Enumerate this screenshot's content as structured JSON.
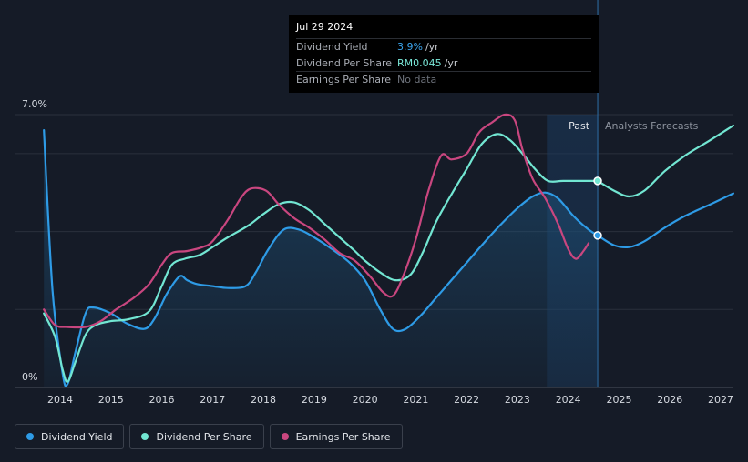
{
  "tooltip": {
    "date": "Jul 29 2024",
    "rows": [
      {
        "label": "Dividend Yield",
        "value": "3.9%",
        "unit": "/yr"
      },
      {
        "label": "Dividend Per Share",
        "value": "RM0.045",
        "unit": "/yr"
      },
      {
        "label": "Earnings Per Share",
        "value": "No data",
        "unit": ""
      }
    ]
  },
  "legend": [
    {
      "label": "Dividend Yield",
      "color": "#2e9be6"
    },
    {
      "label": "Dividend Per Share",
      "color": "#72e6d2"
    },
    {
      "label": "Earnings Per Share",
      "color": "#c9467f"
    }
  ],
  "chart_data": {
    "type": "line",
    "x_ticks": [
      "2014",
      "2015",
      "2016",
      "2017",
      "2018",
      "2019",
      "2020",
      "2021",
      "2022",
      "2023",
      "2024",
      "2025",
      "2026",
      "2027"
    ],
    "y_ticks": [
      "0%",
      "7.0%"
    ],
    "ylim": [
      0,
      7.0
    ],
    "xlim": [
      2013.0,
      2027.25
    ],
    "regions": {
      "past_label": "Past",
      "forecast_label": "Analysts Forecasts",
      "past_start": 2023.58,
      "split": 2024.58
    },
    "marker_x": 2024.58,
    "series": [
      {
        "key": "dividend_yield",
        "color": "#2e9be6",
        "fill": true,
        "points": [
          [
            2013.68,
            6.6
          ],
          [
            2013.85,
            2.5
          ],
          [
            2014.05,
            0.35
          ],
          [
            2014.15,
            0.1
          ],
          [
            2014.3,
            0.9
          ],
          [
            2014.5,
            1.9
          ],
          [
            2014.65,
            2.05
          ],
          [
            2015.0,
            1.9
          ],
          [
            2015.3,
            1.65
          ],
          [
            2015.65,
            1.5
          ],
          [
            2015.85,
            1.75
          ],
          [
            2016.1,
            2.4
          ],
          [
            2016.35,
            2.85
          ],
          [
            2016.5,
            2.75
          ],
          [
            2016.7,
            2.65
          ],
          [
            2017.0,
            2.6
          ],
          [
            2017.3,
            2.55
          ],
          [
            2017.65,
            2.6
          ],
          [
            2017.85,
            2.95
          ],
          [
            2018.1,
            3.55
          ],
          [
            2018.4,
            4.05
          ],
          [
            2018.7,
            4.05
          ],
          [
            2019.0,
            3.85
          ],
          [
            2019.35,
            3.55
          ],
          [
            2019.7,
            3.2
          ],
          [
            2020.0,
            2.75
          ],
          [
            2020.3,
            2.0
          ],
          [
            2020.55,
            1.5
          ],
          [
            2020.8,
            1.5
          ],
          [
            2021.1,
            1.85
          ],
          [
            2021.4,
            2.3
          ],
          [
            2021.7,
            2.75
          ],
          [
            2022.0,
            3.2
          ],
          [
            2022.3,
            3.65
          ],
          [
            2022.65,
            4.15
          ],
          [
            2023.0,
            4.6
          ],
          [
            2023.3,
            4.9
          ],
          [
            2023.55,
            5.0
          ],
          [
            2023.8,
            4.85
          ],
          [
            2024.1,
            4.4
          ],
          [
            2024.4,
            4.05
          ],
          [
            2024.58,
            3.9
          ]
        ],
        "forecast": [
          [
            2024.58,
            3.9
          ],
          [
            2024.9,
            3.65
          ],
          [
            2025.2,
            3.6
          ],
          [
            2025.5,
            3.75
          ],
          [
            2025.9,
            4.1
          ],
          [
            2026.3,
            4.4
          ],
          [
            2026.8,
            4.7
          ],
          [
            2027.25,
            4.98
          ]
        ]
      },
      {
        "key": "dividend_per_share",
        "color": "#72e6d2",
        "fill": false,
        "points": [
          [
            2013.68,
            1.9
          ],
          [
            2013.9,
            1.3
          ],
          [
            2014.05,
            0.45
          ],
          [
            2014.15,
            0.15
          ],
          [
            2014.3,
            0.65
          ],
          [
            2014.5,
            1.35
          ],
          [
            2014.7,
            1.6
          ],
          [
            2015.0,
            1.7
          ],
          [
            2015.35,
            1.75
          ],
          [
            2015.75,
            1.95
          ],
          [
            2016.0,
            2.6
          ],
          [
            2016.2,
            3.15
          ],
          [
            2016.45,
            3.3
          ],
          [
            2016.75,
            3.4
          ],
          [
            2017.0,
            3.6
          ],
          [
            2017.3,
            3.85
          ],
          [
            2017.7,
            4.15
          ],
          [
            2018.0,
            4.45
          ],
          [
            2018.3,
            4.7
          ],
          [
            2018.6,
            4.75
          ],
          [
            2018.9,
            4.55
          ],
          [
            2019.2,
            4.2
          ],
          [
            2019.5,
            3.85
          ],
          [
            2019.8,
            3.5
          ],
          [
            2020.0,
            3.25
          ],
          [
            2020.3,
            2.95
          ],
          [
            2020.6,
            2.75
          ],
          [
            2020.9,
            2.9
          ],
          [
            2021.15,
            3.5
          ],
          [
            2021.4,
            4.25
          ],
          [
            2021.7,
            4.95
          ],
          [
            2022.0,
            5.6
          ],
          [
            2022.3,
            6.25
          ],
          [
            2022.6,
            6.5
          ],
          [
            2022.85,
            6.35
          ],
          [
            2023.1,
            6.0
          ],
          [
            2023.35,
            5.6
          ],
          [
            2023.6,
            5.3
          ],
          [
            2023.9,
            5.3
          ],
          [
            2024.3,
            5.3
          ],
          [
            2024.58,
            5.3
          ]
        ],
        "forecast": [
          [
            2024.58,
            5.3
          ],
          [
            2024.9,
            5.05
          ],
          [
            2025.2,
            4.9
          ],
          [
            2025.5,
            5.05
          ],
          [
            2025.9,
            5.55
          ],
          [
            2026.3,
            5.95
          ],
          [
            2026.8,
            6.35
          ],
          [
            2027.25,
            6.72
          ]
        ]
      },
      {
        "key": "earnings_per_share",
        "color": "#c9467f",
        "fill": false,
        "points": [
          [
            2013.68,
            2.0
          ],
          [
            2013.9,
            1.6
          ],
          [
            2014.15,
            1.55
          ],
          [
            2014.5,
            1.55
          ],
          [
            2014.8,
            1.7
          ],
          [
            2015.1,
            2.0
          ],
          [
            2015.45,
            2.3
          ],
          [
            2015.75,
            2.65
          ],
          [
            2016.0,
            3.15
          ],
          [
            2016.2,
            3.45
          ],
          [
            2016.5,
            3.5
          ],
          [
            2016.8,
            3.6
          ],
          [
            2017.0,
            3.75
          ],
          [
            2017.3,
            4.3
          ],
          [
            2017.55,
            4.85
          ],
          [
            2017.75,
            5.1
          ],
          [
            2018.05,
            5.05
          ],
          [
            2018.3,
            4.7
          ],
          [
            2018.6,
            4.35
          ],
          [
            2018.9,
            4.1
          ],
          [
            2019.2,
            3.8
          ],
          [
            2019.5,
            3.45
          ],
          [
            2019.8,
            3.25
          ],
          [
            2020.1,
            2.85
          ],
          [
            2020.35,
            2.45
          ],
          [
            2020.55,
            2.35
          ],
          [
            2020.75,
            2.85
          ],
          [
            2021.0,
            3.8
          ],
          [
            2021.25,
            5.05
          ],
          [
            2021.5,
            5.95
          ],
          [
            2021.7,
            5.85
          ],
          [
            2022.0,
            6.0
          ],
          [
            2022.25,
            6.55
          ],
          [
            2022.5,
            6.8
          ],
          [
            2022.75,
            7.0
          ],
          [
            2022.95,
            6.85
          ],
          [
            2023.1,
            6.1
          ],
          [
            2023.3,
            5.35
          ],
          [
            2023.55,
            4.85
          ],
          [
            2023.8,
            4.2
          ],
          [
            2024.0,
            3.55
          ],
          [
            2024.15,
            3.3
          ],
          [
            2024.3,
            3.5
          ],
          [
            2024.4,
            3.7
          ]
        ],
        "forecast": []
      }
    ]
  }
}
